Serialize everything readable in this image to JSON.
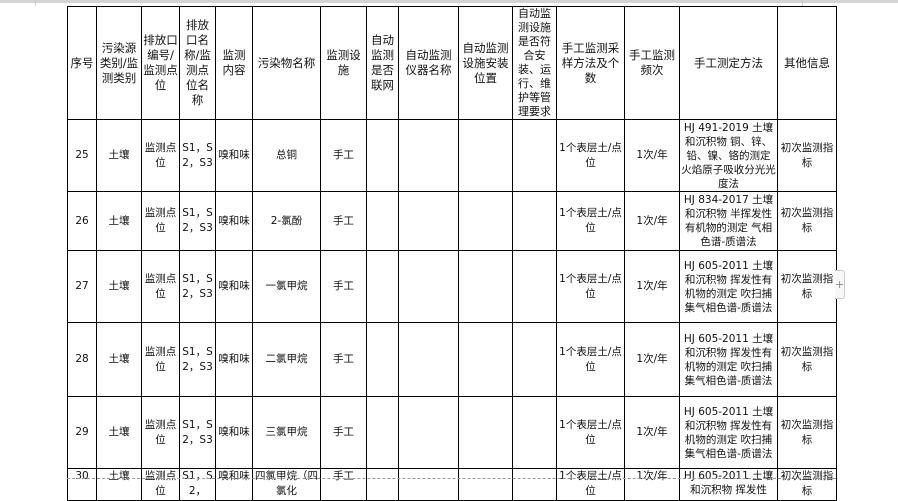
{
  "headers": [
    "序号",
    "污染源类别/监测类别",
    "排放口编号/监测点位",
    "排放口名称/监测点位名称",
    "监测内容",
    "污染物名称",
    "监测设施",
    "自动监测是否联网",
    "自动监测仪器名称",
    "自动监测设施安装位置",
    "自动监测设施是否符合安装、运行、维护等管理要求",
    "手工监测采样方法及个数",
    "手工监测频次",
    "手工测定方法",
    "其他信息"
  ],
  "rows": [
    {
      "no": "25",
      "category": "土壤",
      "point": "监测点位",
      "point_name": "S1，S2，S3",
      "content": "嗅和味",
      "pollutant": "总铜",
      "facility": "手工",
      "auto_net": "",
      "auto_name": "",
      "auto_loc": "",
      "auto_req": "",
      "sampling": "1个表层土/点位",
      "freq": "1次/年",
      "method": "HJ 491-2019 土壤和沉积物 铜、锌、铅、镍、铬的测定 火焰原子吸收分光光度法",
      "other": "初次监测指标"
    },
    {
      "no": "26",
      "category": "土壤",
      "point": "监测点位",
      "point_name": "S1，S2，S3",
      "content": "嗅和味",
      "pollutant": "2-氯酚",
      "facility": "手工",
      "auto_net": "",
      "auto_name": "",
      "auto_loc": "",
      "auto_req": "",
      "sampling": "1个表层土/点位",
      "freq": "1次/年",
      "method": "HJ 834-2017 土壤和沉积物 半挥发性有机物的测定 气相色谱-质谱法",
      "other": "初次监测指标"
    },
    {
      "no": "27",
      "category": "土壤",
      "point": "监测点位",
      "point_name": "S1，S2，S3",
      "content": "嗅和味",
      "pollutant": "一氯甲烷",
      "facility": "手工",
      "auto_net": "",
      "auto_name": "",
      "auto_loc": "",
      "auto_req": "",
      "sampling": "1个表层土/点位",
      "freq": "1次/年",
      "method": "HJ 605-2011 土壤和沉积物 挥发性有机物的测定 吹扫捕集气相色谱-质谱法",
      "other": "初次监测指标"
    },
    {
      "no": "28",
      "category": "土壤",
      "point": "监测点位",
      "point_name": "S1，S2，S3",
      "content": "嗅和味",
      "pollutant": "二氯甲烷",
      "facility": "手工",
      "auto_net": "",
      "auto_name": "",
      "auto_loc": "",
      "auto_req": "",
      "sampling": "1个表层土/点位",
      "freq": "1次/年",
      "method": "HJ 605-2011 土壤和沉积物 挥发性有机物的测定 吹扫捕集气相色谱-质谱法",
      "other": "初次监测指标"
    },
    {
      "no": "29",
      "category": "土壤",
      "point": "监测点位",
      "point_name": "S1，S2，S3",
      "content": "嗅和味",
      "pollutant": "三氯甲烷",
      "facility": "手工",
      "auto_net": "",
      "auto_name": "",
      "auto_loc": "",
      "auto_req": "",
      "sampling": "1个表层土/点位",
      "freq": "1次/年",
      "method": "HJ 605-2011 土壤和沉积物 挥发性有机物的测定 吹扫捕集气相色谱-质谱法",
      "other": "初次监测指标"
    },
    {
      "no": "30",
      "category": "土壤",
      "point": "监测点位",
      "point_name": "S1，S2，",
      "content": "嗅和味",
      "pollutant": "四氯甲烷（四氯化",
      "facility": "手工",
      "auto_net": "",
      "auto_name": "",
      "auto_loc": "",
      "auto_req": "",
      "sampling": "1个表层土/点位",
      "freq": "1次/年",
      "method": "HJ 605-2011 土壤和沉积物 挥发性",
      "other": "初次监测指标"
    }
  ],
  "add_button_label": "+"
}
